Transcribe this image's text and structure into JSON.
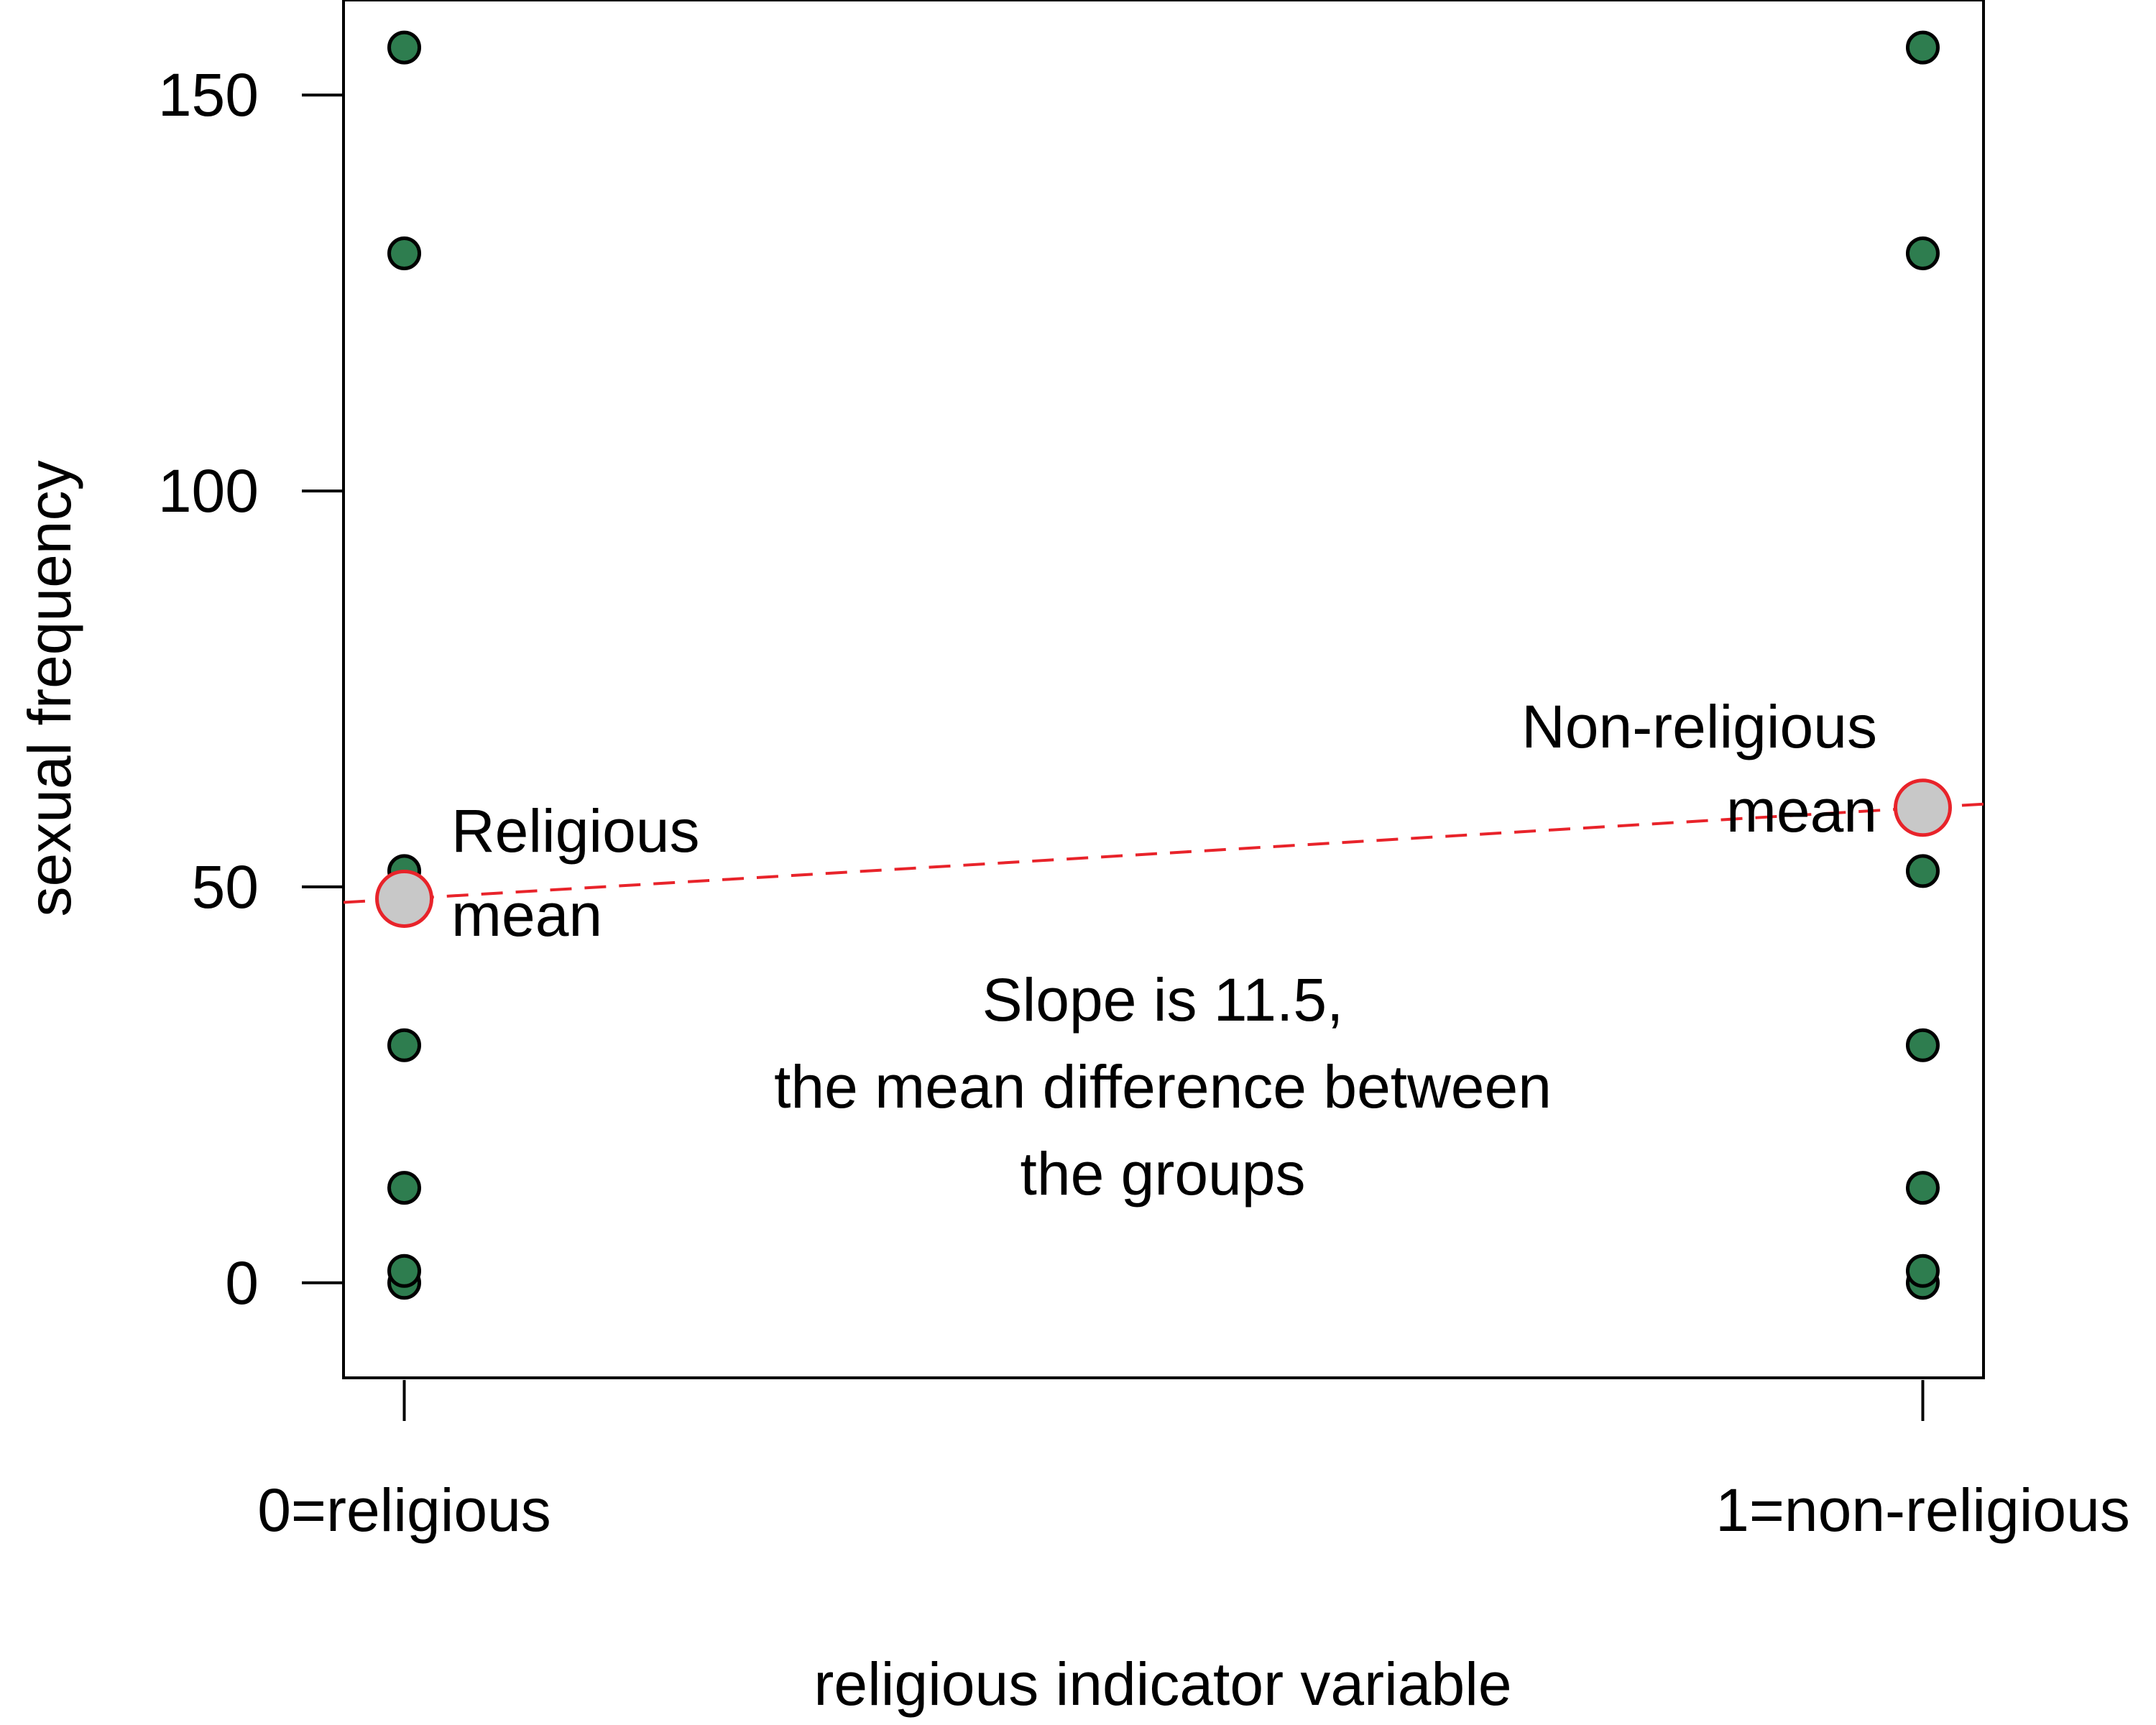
{
  "chart_data": {
    "type": "scatter",
    "title": "",
    "xlabel": "religious indicator variable",
    "ylabel": "sexual frequency",
    "xlim": [
      -0.04,
      1.04
    ],
    "ylim": [
      -12,
      162
    ],
    "x_ticks": [
      {
        "value": 0,
        "label": "0=religious"
      },
      {
        "value": 1,
        "label": "1=non-religious"
      }
    ],
    "y_ticks": [
      0,
      50,
      100,
      150
    ],
    "grid": false,
    "series": [
      {
        "color": "#2e7d4f",
        "points": [
          {
            "x": 0,
            "y": 0
          },
          {
            "x": 0,
            "y": 1.5
          },
          {
            "x": 0,
            "y": 12
          },
          {
            "x": 0,
            "y": 30
          },
          {
            "x": 0,
            "y": 52
          },
          {
            "x": 0,
            "y": 130
          },
          {
            "x": 0,
            "y": 156
          },
          {
            "x": 1,
            "y": 0
          },
          {
            "x": 1,
            "y": 1.5
          },
          {
            "x": 1,
            "y": 12
          },
          {
            "x": 1,
            "y": 30
          },
          {
            "x": 1,
            "y": 52
          },
          {
            "x": 1,
            "y": 130
          },
          {
            "x": 1,
            "y": 156
          }
        ]
      }
    ],
    "group_means": [
      {
        "x": 0,
        "y": 48.5,
        "label_lines": [
          "Religious",
          "mean"
        ]
      },
      {
        "x": 1,
        "y": 60,
        "label_lines": [
          "Non-religious",
          "mean"
        ]
      }
    ],
    "regression_line": {
      "intercept": 48.5,
      "slope": 11.5,
      "color": "#e8232a",
      "style": "dashed"
    },
    "mean_marker_fill": "#c8c8c8",
    "mean_marker_stroke": "#e8232a",
    "annotation_lines": [
      "Slope is 11.5,",
      "the mean difference between",
      "the groups"
    ]
  }
}
